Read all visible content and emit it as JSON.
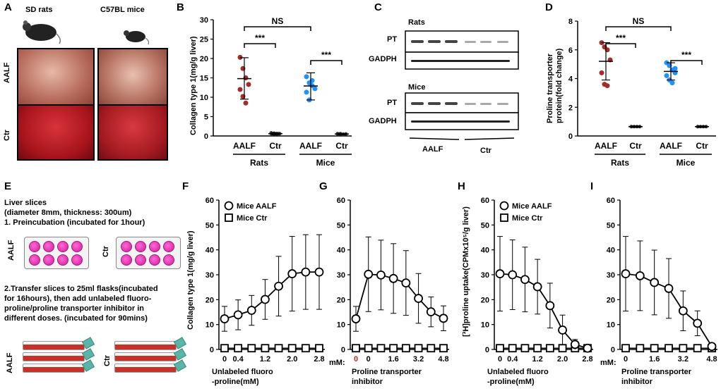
{
  "panels": {
    "A": {
      "letter": "A",
      "labels": {
        "rats": "SD rats",
        "mice": "C57BL mice",
        "aalf": "AALF",
        "ctr": "Ctr"
      }
    },
    "B": {
      "letter": "B",
      "ylabel": "Collagen type 1(mg/g  liver)",
      "ns": "NS",
      "sig1": "***",
      "sig2": "***",
      "groups": [
        "AALF",
        "Ctr",
        "AALF",
        "Ctr"
      ],
      "species": [
        "Rats",
        "Mice"
      ]
    },
    "C": {
      "letter": "C",
      "rats": "Rats",
      "mice": "Mice",
      "pt": "PT",
      "gadph": "GADPH",
      "aalf": "AALF",
      "ctr": "Ctr"
    },
    "D": {
      "letter": "D",
      "ylabel": "Proline transporter\nprotein(fold change)",
      "ns": "NS",
      "sig1": "***",
      "sig2": "***",
      "groups": [
        "AALF",
        "Ctr",
        "AALF",
        "Ctr"
      ],
      "species": [
        "Rats",
        "Mice"
      ]
    },
    "E": {
      "letter": "E",
      "lines": [
        "Liver slices",
        "(diameter 8mm, thickness: 300um)",
        "1. Preincubation (incubated for 1hour)"
      ],
      "step2": [
        "2.Transfer slices to 25ml flasks(incubated",
        "for 16hours), then add unlabeled fluoro-",
        "proline/proline transporter inhibitor in",
        "different doses. (incubated for 90mins)"
      ],
      "aalf": "AALF",
      "ctr": "Ctr"
    },
    "F": {
      "letter": "F",
      "ylabel": "Collagen type 1(mg/g liver)",
      "xlabel1": "Unlabeled fluoro",
      "xlabel2": "-proline(mM)"
    },
    "G": {
      "letter": "G",
      "xlabel1": "Proline transporter",
      "xlabel2": "inhibitor",
      "mm": "mM:"
    },
    "H": {
      "letter": "H",
      "ylabel": "[³H]proline uptake(CPMx10⁵/g liver)",
      "xlabel1": "Unlabeled fluoro",
      "xlabel2": "-proline(mM)"
    },
    "I": {
      "letter": "I",
      "xlabel1": "Proline transporter",
      "xlabel2": "inhibitor",
      "mm": "mM:"
    }
  },
  "chart_data": [
    {
      "id": "B",
      "type": "scatter",
      "title": "",
      "ylabel": "Collagen type 1(mg/g  liver)",
      "categories": [
        "Rats AALF",
        "Rats Ctr",
        "Mice AALF",
        "Mice Ctr"
      ],
      "yticks": [
        0,
        5,
        10,
        15,
        20,
        25,
        30
      ],
      "ylim": [
        0,
        30
      ],
      "groups": [
        {
          "name": "Rats AALF",
          "color": "#a52a2a",
          "mean": 14.8,
          "sd_low": 9.5,
          "sd_high": 20.2,
          "points": [
            20.3,
            17.4,
            15.0,
            13.3,
            12.0,
            10.2,
            8.5
          ]
        },
        {
          "name": "Rats Ctr",
          "color": "#333333",
          "mean": 0.6,
          "sd_low": 0.3,
          "sd_high": 0.9,
          "points": [
            0.6,
            0.7,
            0.5,
            0.6,
            0.8,
            0.5,
            0.6
          ]
        },
        {
          "name": "Mice AALF",
          "color": "#1e90ff",
          "mean": 12.9,
          "sd_low": 9.3,
          "sd_high": 16.3,
          "points": [
            15.3,
            13.7,
            13.0,
            12.2,
            11.3,
            9.3,
            14.3
          ]
        },
        {
          "name": "Mice Ctr",
          "color": "#333333",
          "mean": 0.5,
          "sd_low": 0.3,
          "sd_high": 0.7,
          "points": [
            0.5,
            0.6,
            0.4,
            0.5,
            0.6,
            0.5,
            0.4
          ]
        }
      ]
    },
    {
      "id": "D",
      "type": "scatter",
      "title": "",
      "ylabel": "Proline transporter protein(fold change)",
      "categories": [
        "Rats AALF",
        "Rats Ctr",
        "Mice AALF",
        "Mice Ctr"
      ],
      "yticks": [
        0,
        2,
        4,
        6,
        8
      ],
      "ylim": [
        0,
        8
      ],
      "groups": [
        {
          "name": "Rats AALF",
          "color": "#a52a2a",
          "mean": 5.2,
          "sd_low": 3.9,
          "sd_high": 6.5,
          "points": [
            6.5,
            6.2,
            6.0,
            5.3,
            4.4,
            3.6,
            3.5
          ]
        },
        {
          "name": "Rats Ctr",
          "color": "#333333",
          "mean": 0.65,
          "sd_low": 0.6,
          "sd_high": 0.7,
          "points": [
            0.65,
            0.65,
            0.65,
            0.65,
            0.65
          ]
        },
        {
          "name": "Mice AALF",
          "color": "#1e90ff",
          "mean": 4.5,
          "sd_low": 3.9,
          "sd_high": 5.1,
          "points": [
            5.1,
            4.9,
            4.6,
            4.4,
            4.2,
            3.9,
            3.7,
            4.7
          ]
        },
        {
          "name": "Mice Ctr",
          "color": "#333333",
          "mean": 0.65,
          "sd_low": 0.6,
          "sd_high": 0.7,
          "points": [
            0.65,
            0.65,
            0.65,
            0.65,
            0.65
          ]
        }
      ]
    },
    {
      "id": "F",
      "type": "line",
      "xticks": [
        "0",
        "0.4",
        "1.2",
        "2.0",
        "2.8"
      ],
      "yticks": [
        0,
        10,
        20,
        30,
        40,
        50,
        60
      ],
      "ylim": [
        0,
        60
      ],
      "legend": [
        "Mice AALF",
        "Mice Ctr"
      ],
      "series": [
        {
          "name": "Mice AALF",
          "marker": "circle",
          "values": [
            12.3,
            13.9,
            15.7,
            20.1,
            25.4,
            30.4,
            31.1,
            31.1
          ],
          "err": [
            5,
            6,
            6,
            8,
            12,
            15,
            15,
            15
          ]
        },
        {
          "name": "Mice Ctr",
          "marker": "square",
          "values": [
            0.5,
            0.5,
            0.5,
            0.5,
            0.5,
            0.5,
            0.5,
            0.5
          ]
        }
      ]
    },
    {
      "id": "G",
      "type": "line",
      "xticks": [
        "0",
        "0",
        "1.6",
        "3.2",
        "4.8"
      ],
      "yticks": [
        0,
        10,
        20,
        30,
        40,
        50,
        60
      ],
      "ylim": [
        0,
        60
      ],
      "series": [
        {
          "name": "Mice AALF",
          "marker": "circle",
          "values": [
            12.3,
            30.2,
            29.9,
            28.5,
            26.7,
            20.5,
            15.1,
            12.5
          ],
          "err": [
            5,
            15,
            14,
            14,
            13,
            10,
            6,
            5
          ]
        },
        {
          "name": "Mice Ctr",
          "marker": "square",
          "values": [
            0.5,
            0.5,
            0.5,
            0.5,
            0.5,
            0.5,
            0.5,
            0.5
          ]
        }
      ]
    },
    {
      "id": "H",
      "type": "line",
      "xticks": [
        "0",
        "0.4",
        "1.2",
        "2.0",
        "2.8"
      ],
      "yticks": [
        0,
        10,
        20,
        30,
        40,
        50,
        60
      ],
      "ylim": [
        0,
        60
      ],
      "legend": [
        "Mice AALF",
        "Mice Ctr"
      ],
      "series": [
        {
          "name": "Mice AALF",
          "marker": "circle",
          "values": [
            30.4,
            30.0,
            28.1,
            25.2,
            17.6,
            7.8,
            2.0,
            0.5
          ],
          "err": [
            15,
            14,
            13,
            11,
            9,
            6,
            2,
            1
          ]
        },
        {
          "name": "Mice Ctr",
          "marker": "square",
          "values": [
            0.5,
            0.5,
            0.5,
            0.5,
            0.5,
            0.5,
            0.5,
            0.5
          ]
        }
      ]
    },
    {
      "id": "I",
      "type": "line",
      "xticks": [
        "0",
        "1.6",
        "3.2",
        "4.8"
      ],
      "yticks": [
        0,
        10,
        20,
        30,
        40,
        50,
        60
      ],
      "ylim": [
        0,
        60
      ],
      "series": [
        {
          "name": "Mice AALF",
          "marker": "circle",
          "values": [
            30.4,
            29.6,
            26.9,
            24.5,
            15.5,
            10.5,
            1.2
          ],
          "err": [
            15,
            14,
            13,
            12,
            8,
            5,
            1
          ]
        },
        {
          "name": "Mice Ctr",
          "marker": "square",
          "values": [
            0.5,
            0.5,
            0.5,
            0.5,
            0.5,
            0.5,
            0.5
          ]
        }
      ]
    }
  ]
}
